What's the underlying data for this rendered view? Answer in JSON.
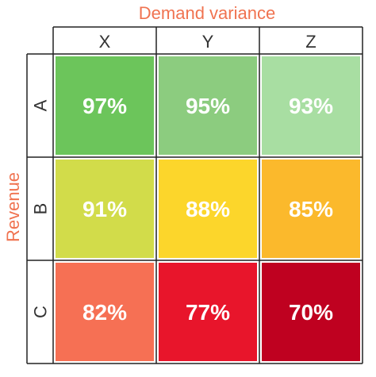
{
  "chart_data": {
    "type": "heatmap",
    "title": "Demand variance",
    "xlabel": "Demand variance",
    "ylabel": "Revenue",
    "columns": [
      "X",
      "Y",
      "Z"
    ],
    "rows": [
      "A",
      "B",
      "C"
    ],
    "values": [
      [
        97,
        95,
        93
      ],
      [
        91,
        88,
        85
      ],
      [
        82,
        77,
        70
      ]
    ],
    "labels": [
      [
        "97%",
        "95%",
        "93%"
      ],
      [
        "91%",
        "88%",
        "85%"
      ],
      [
        "82%",
        "77%",
        "70%"
      ]
    ],
    "colors": [
      [
        "#6cc55b",
        "#8ccc7f",
        "#a8dea2"
      ],
      [
        "#d2dc4a",
        "#fcd62b",
        "#fbb92c"
      ],
      [
        "#f67054",
        "#e8152b",
        "#bf0120"
      ]
    ],
    "title_color": "#f07350",
    "grid": true
  }
}
